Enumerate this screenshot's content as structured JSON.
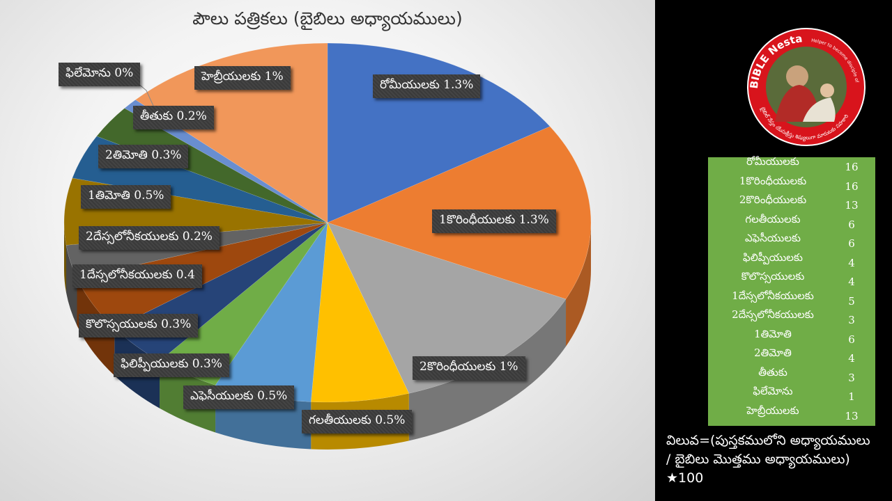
{
  "chart_data": {
    "type": "pie",
    "title": "పౌలు పత్రికలు (బైబిలు అధ్యాయములు)",
    "slices": [
      {
        "label": "రోమీయులకు",
        "value": 16,
        "data_label": "రోమీయులకు  1.3%",
        "color": "#4472c4"
      },
      {
        "label": "1కొరింధీయులకు",
        "value": 16,
        "data_label": "1కొరింధీయులకు  1.3%",
        "color": "#ed7d31"
      },
      {
        "label": "2కొరింధీయులకు",
        "value": 13,
        "data_label": "2కొరింధీయులకు  1%",
        "color": "#a5a5a5"
      },
      {
        "label": "గలతీయులకు",
        "value": 6,
        "data_label": "గలతీయులకు 0.5%",
        "color": "#ffc000"
      },
      {
        "label": "ఎఫెసీయులకు",
        "value": 6,
        "data_label": "ఎఫెసీయులకు 0.5%",
        "color": "#5b9bd5"
      },
      {
        "label": "ఫిలిప్పీయులకు",
        "value": 4,
        "data_label": "ఫిలిప్పీయులకు  0.3%",
        "color": "#70ad47"
      },
      {
        "label": "కొలొస్సయులకు",
        "value": 4,
        "data_label": "కొలొస్సయులకు 0.3%",
        "color": "#264478"
      },
      {
        "label": "1దేస్సలోనీకయులకు",
        "value": 5,
        "data_label": "1దేస్సలోనీకయులకు 0.4",
        "color": "#9e480e"
      },
      {
        "label": "2దేస్సలోనీకయులకు",
        "value": 3,
        "data_label": "2దేస్సలోనీకయులకు  0.2%",
        "color": "#636363"
      },
      {
        "label": "1తిమోతి",
        "value": 6,
        "data_label": "1తిమోతి  0.5%",
        "color": "#997300"
      },
      {
        "label": "2తిమోతి",
        "value": 4,
        "data_label": "2తిమోతి  0.3%",
        "color": "#255e91"
      },
      {
        "label": "తీతుకు",
        "value": 3,
        "data_label": "తీతుకు  0.2%",
        "color": "#43682b"
      },
      {
        "label": "ఫిలేమోను",
        "value": 1,
        "data_label": "ఫిలేమోను  0%",
        "color": "#698ed0"
      },
      {
        "label": "హెబ్రీయులకు",
        "value": 13,
        "data_label": "హెబ్రీయులకు 1%",
        "color": "#f1975a"
      }
    ]
  },
  "table": {
    "rows": [
      {
        "name": "రోమీయులకు",
        "value": "16"
      },
      {
        "name": "1కొరింధీయులకు",
        "value": "16"
      },
      {
        "name": "2కొరింధీయులకు",
        "value": "13"
      },
      {
        "name": "గలతీయులకు",
        "value": "6"
      },
      {
        "name": "ఎఫెసీయులకు",
        "value": "6"
      },
      {
        "name": "ఫిలిప్పీయులకు",
        "value": "4"
      },
      {
        "name": "కొలొస్సయులకు",
        "value": "4"
      },
      {
        "name": "1దేస్సలోనీకయులకు",
        "value": "5"
      },
      {
        "name": "2దేస్సలోనీకయులకు",
        "value": "3"
      },
      {
        "name": "1తిమోతి",
        "value": "6"
      },
      {
        "name": "2తిమోతి",
        "value": "4"
      },
      {
        "name": "తీతుకు",
        "value": "3"
      },
      {
        "name": "ఫిలేమోను",
        "value": "1"
      },
      {
        "name": "హెబ్రీయులకు",
        "value": "13"
      }
    ]
  },
  "formula": {
    "line1": "విలువ=(పుస్తకములోని అధ్యాయములు",
    "line2": "/ బైబిలు మొత్తము అధ్యాయములు)",
    "line3": "★100"
  },
  "logo": {
    "text_top": "BIBLE Nestam",
    "text_right": "Helper to become disciple of JESUS CHRIST",
    "text_bottom": "బైబిల్ నేస్తం యేసుక్రీస్తు శిష్యులుగా మారుటకు సహకారి",
    "ring_color": "#d8141c"
  }
}
